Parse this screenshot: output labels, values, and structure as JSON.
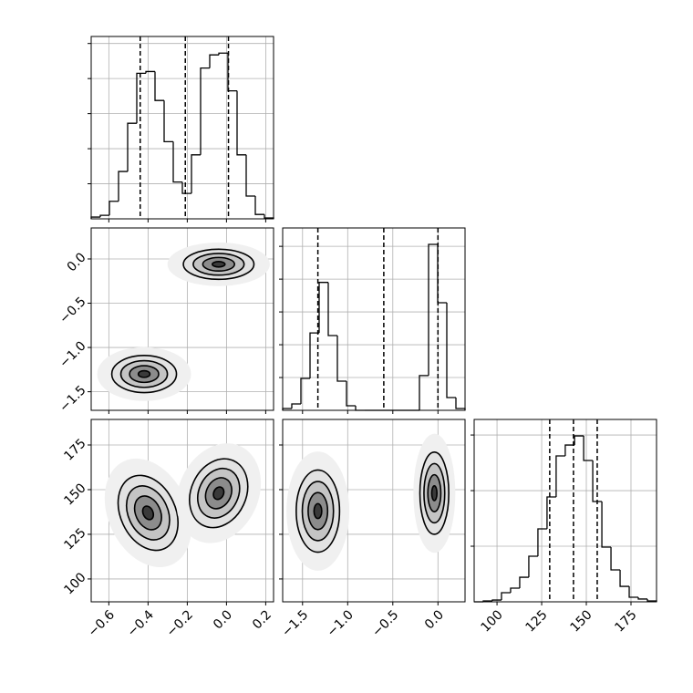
{
  "chart_data": [
    {
      "type": "histogram",
      "color": "#000000",
      "grid": true,
      "bins": [
        -0.69,
        -0.6435,
        -0.597,
        -0.5505,
        -0.504,
        -0.4575,
        -0.411,
        -0.3645,
        -0.318,
        -0.2715,
        -0.225,
        -0.1785,
        -0.132,
        -0.0855,
        -0.039,
        0.0075,
        0.054,
        0.1005,
        0.147,
        0.1935,
        0.24
      ],
      "values": [
        10,
        20,
        100,
        270,
        545,
        830,
        840,
        675,
        440,
        210,
        145,
        365,
        860,
        935,
        945,
        730,
        365,
        130,
        25,
        5
      ],
      "quantiles": [
        -0.44,
        -0.21,
        0.01
      ],
      "xlim": [
        -0.69,
        0.24
      ],
      "xticks": [
        -0.6,
        -0.4,
        -0.2,
        0,
        0.2
      ],
      "ylim": [
        0,
        1040
      ],
      "yticks": [
        200,
        400,
        600,
        800,
        1000
      ],
      "tick_labels": {
        "x": false,
        "y": false
      }
    },
    {
      "type": "contour",
      "color": "#000000",
      "grid": true,
      "contours": [
        {
          "cx": -0.42,
          "cy": -1.3,
          "rx": 0.165,
          "ry": 0.21,
          "tilt": 0
        },
        {
          "cx": -0.04,
          "cy": -0.06,
          "rx": 0.18,
          "ry": 0.17,
          "tilt": 0
        }
      ],
      "xlim": [
        -0.69,
        0.24
      ],
      "xticks": [
        -0.6,
        -0.4,
        -0.2,
        0,
        0.2
      ],
      "ylim": [
        -1.71,
        0.35
      ],
      "yticks": [
        {
          "value": 0,
          "label": "0.0"
        },
        {
          "value": -0.5,
          "label": "−0.5"
        },
        {
          "value": -1,
          "label": "−1.0"
        },
        {
          "value": -1.5,
          "label": "−1.5"
        }
      ],
      "tick_labels": {
        "x": false,
        "y": true
      }
    },
    {
      "type": "histogram",
      "color": "#000000",
      "grid": true,
      "bins": [
        -1.72,
        -1.619,
        -1.518,
        -1.417,
        -1.316,
        -1.215,
        -1.114,
        -1.013,
        -0.912,
        -0.811,
        -0.71,
        -0.609,
        -0.508,
        -0.407,
        -0.306,
        -0.205,
        -0.104,
        -0.003,
        0.098,
        0.199,
        0.3
      ],
      "values": [
        28,
        97,
        487,
        1180,
        1950,
        1140,
        445,
        70,
        0,
        0,
        0,
        0,
        0,
        0,
        0,
        530,
        2530,
        1640,
        195,
        28
      ],
      "quantiles": [
        -1.33,
        -0.6,
        0
      ],
      "xlim": [
        -1.72,
        0.3
      ],
      "xticks": [
        -1.5,
        -1,
        -0.5,
        0
      ],
      "ylim": [
        0,
        2780
      ],
      "yticks": [
        500,
        1000,
        1500,
        2000,
        2500
      ],
      "tick_labels": {
        "x": false,
        "y": false
      }
    },
    {
      "type": "contour",
      "color": "#000000",
      "grid": true,
      "contours": [
        {
          "cx": -0.4,
          "cy": 137,
          "rx": 0.14,
          "ry": 22,
          "tilt": -25
        },
        {
          "cx": -0.04,
          "cy": 148,
          "rx": 0.14,
          "ry": 20,
          "tilt": 25
        }
      ],
      "xlim": [
        -0.69,
        0.24
      ],
      "xticks": [
        {
          "value": -0.6,
          "label": "−0.6"
        },
        {
          "value": -0.4,
          "label": "−0.4"
        },
        {
          "value": -0.2,
          "label": "−0.2"
        },
        {
          "value": 0,
          "label": "0.0"
        },
        {
          "value": 0.2,
          "label": "0.2"
        }
      ],
      "ylim": [
        87.2,
        189.3
      ],
      "yticks": [
        100,
        125,
        150,
        175
      ],
      "tick_labels": {
        "x": true,
        "y": true
      }
    },
    {
      "type": "contour",
      "color": "#000000",
      "grid": true,
      "contours": [
        {
          "cx": -1.33,
          "cy": 138,
          "rx": 0.24,
          "ry": 23,
          "tilt": 0
        },
        {
          "cx": -0.04,
          "cy": 148,
          "rx": 0.16,
          "ry": 23,
          "tilt": 0
        }
      ],
      "xlim": [
        -1.72,
        0.3
      ],
      "xticks": [
        {
          "value": -1.5,
          "label": "−1.5"
        },
        {
          "value": -1,
          "label": "−1.0"
        },
        {
          "value": -0.5,
          "label": "−0.5"
        },
        {
          "value": 0,
          "label": "0.0"
        }
      ],
      "ylim": [
        87.2,
        189.3
      ],
      "yticks": [
        100,
        125,
        150,
        175
      ],
      "tick_labels": {
        "x": true,
        "y": false
      }
    },
    {
      "type": "histogram",
      "color": "#000000",
      "grid": true,
      "bins": [
        87.2,
        92.3,
        97.4,
        102.5,
        107.6,
        112.7,
        117.8,
        122.9,
        128.0,
        133.1,
        138.2,
        143.4,
        148.5,
        153.6,
        158.7,
        163.8,
        168.9,
        174.0,
        179.1,
        184.2,
        189.3
      ],
      "values": [
        0,
        8,
        16,
        82,
        123,
        221,
        410,
        656,
        943,
        1312,
        1410,
        1492,
        1271,
        902,
        492,
        287,
        139,
        41,
        25,
        8
      ],
      "quantiles": [
        129.5,
        142.8,
        156.1
      ],
      "xlim": [
        87.2,
        189.3
      ],
      "xticks": [
        100,
        125,
        150,
        175
      ],
      "ylim": [
        0,
        1640
      ],
      "yticks": [
        500,
        1000,
        1500
      ],
      "tick_labels": {
        "x": true,
        "y": false
      }
    }
  ]
}
